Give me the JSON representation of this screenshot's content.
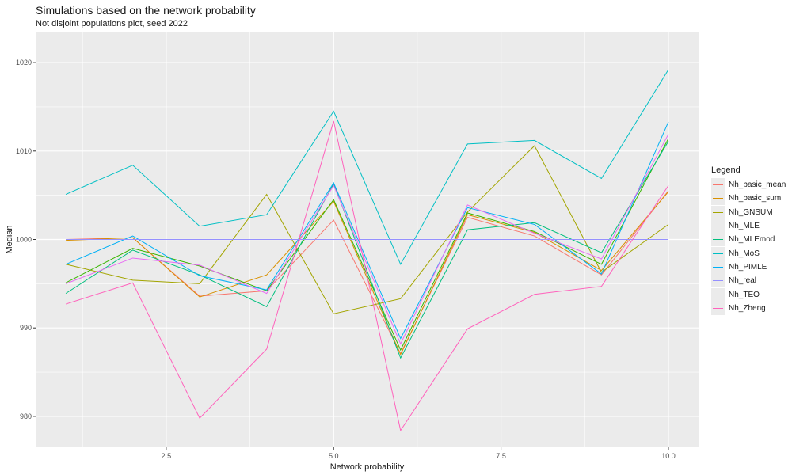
{
  "chart_data": {
    "type": "line",
    "title": "Simulations based on the network probability",
    "subtitle": "Not disjoint populations plot, seed 2022",
    "xlabel": "Network probability",
    "ylabel": "Median",
    "xlim": [
      0.55,
      10.45
    ],
    "ylim": [
      976.5,
      1023.5
    ],
    "x_ticks": [
      2.5,
      5.0,
      7.5,
      10.0
    ],
    "x_tick_labels": [
      "2.5",
      "5.0",
      "7.5",
      "10.0"
    ],
    "y_ticks": [
      980,
      990,
      1000,
      1010,
      1020
    ],
    "y_tick_labels": [
      "980",
      "990",
      "1000",
      "1010",
      "1020"
    ],
    "grid": true,
    "legend_position": "right",
    "legend_title": "Legend",
    "x": [
      1,
      2,
      3,
      4,
      5,
      6,
      7,
      8,
      9,
      10
    ],
    "series": [
      {
        "name": "Nh_basic_mean",
        "color": "#F8766D",
        "values": [
          1000.0,
          1000.2,
          993.6,
          994.2,
          1002.2,
          987.1,
          1002.5,
          1000.4,
          996.0,
          1005.5
        ]
      },
      {
        "name": "Nh_basic_sum",
        "color": "#D89000",
        "values": [
          999.9,
          1000.2,
          993.5,
          996.0,
          1004.3,
          987.0,
          1002.8,
          1000.8,
          996.5,
          1005.4
        ]
      },
      {
        "name": "Nh_GNSUM",
        "color": "#A3A500",
        "values": [
          997.2,
          995.4,
          995.0,
          1005.1,
          991.6,
          993.3,
          1003.1,
          1010.6,
          996.3,
          1001.7
        ]
      },
      {
        "name": "Nh_MLE",
        "color": "#39B600",
        "values": [
          995.1,
          999.0,
          997.0,
          994.2,
          1004.5,
          987.5,
          1003.0,
          1000.9,
          997.2,
          1011.4
        ]
      },
      {
        "name": "Nh_MLEmod",
        "color": "#00BF7D",
        "values": [
          993.9,
          998.8,
          996.0,
          992.4,
          1006.3,
          986.6,
          1001.1,
          1001.9,
          998.5,
          1011.1
        ]
      },
      {
        "name": "Nh_MoS",
        "color": "#00BFC4",
        "values": [
          1005.1,
          1008.4,
          1001.5,
          1002.8,
          1014.5,
          997.2,
          1010.8,
          1011.2,
          1006.9,
          1019.2
        ]
      },
      {
        "name": "Nh_PIMLE",
        "color": "#00B0F6",
        "values": [
          997.2,
          1000.4,
          995.9,
          994.3,
          1006.4,
          988.8,
          1003.6,
          1001.7,
          996.1,
          1013.3
        ]
      },
      {
        "name": "Nh_real",
        "color": "#9590FF",
        "values": [
          1000,
          1000,
          1000,
          1000,
          1000,
          1000,
          1000,
          1000,
          1000,
          1000
        ]
      },
      {
        "name": "Nh_TEO",
        "color": "#E76BF3",
        "values": [
          995.0,
          997.9,
          997.1,
          993.9,
          1006.1,
          988.2,
          1003.9,
          1000.7,
          997.8,
          1011.9
        ]
      },
      {
        "name": "Nh_Zheng",
        "color": "#FF62BC",
        "values": [
          992.7,
          995.1,
          979.8,
          987.6,
          1013.4,
          978.4,
          989.9,
          993.8,
          994.7,
          1006.1
        ]
      }
    ]
  }
}
